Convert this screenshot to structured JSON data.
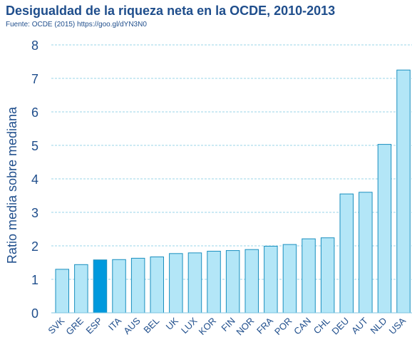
{
  "title": "Desigualdad de la riqueza neta en la OCDE, 2010-2013",
  "source": "Fuente: OCDE (2015) https://goo.gl/dYN3N0",
  "colors": {
    "bar": "#b3e6f7",
    "bar_highlight": "#0099dd",
    "bar_stroke": "#1a8fbf",
    "grid": "#9ad6ea",
    "text": "#1f4e8c"
  },
  "chart_data": {
    "type": "bar",
    "ylabel": "Ratio media sobre mediana",
    "xlabel": "",
    "ylim": [
      0,
      8
    ],
    "yticks": [
      "0",
      "1",
      "2",
      "3",
      "4",
      "5",
      "6",
      "7",
      "8"
    ],
    "grid": true,
    "highlight": "ESP",
    "categories": [
      "SVK",
      "GRE",
      "ESP",
      "ITA",
      "AUS",
      "BEL",
      "UK",
      "LUX",
      "KOR",
      "FIN",
      "NOR",
      "FRA",
      "POR",
      "CAN",
      "CHL",
      "DEU",
      "AUT",
      "NLD",
      "USA"
    ],
    "values": [
      1.3,
      1.44,
      1.58,
      1.59,
      1.63,
      1.67,
      1.77,
      1.79,
      1.84,
      1.86,
      1.89,
      1.99,
      2.04,
      2.21,
      2.24,
      3.55,
      3.6,
      5.03,
      7.25
    ]
  }
}
